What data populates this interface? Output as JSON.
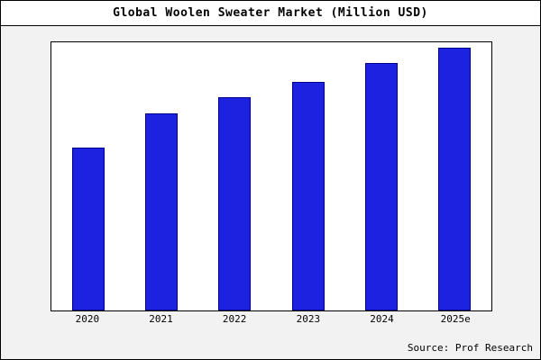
{
  "title": "Global Woolen Sweater Market (Million USD)",
  "source": "Source: Prof Research",
  "colors": {
    "bar_fill": "#1c22e0",
    "bar_border": "#00008b",
    "panel_bg": "#f2f2f2",
    "plot_bg": "#ffffff"
  },
  "chart_data": {
    "type": "bar",
    "categories": [
      "2020",
      "2021",
      "2022",
      "2023",
      "2024",
      "2025e"
    ],
    "values": [
      62,
      75,
      81,
      87,
      94,
      100
    ],
    "title": "Global Woolen Sweater Market (Million USD)",
    "xlabel": "",
    "ylabel": "",
    "ylim": [
      0,
      102
    ],
    "grid": false,
    "legend": "none",
    "note": "No y-axis tick labels shown in source image; values estimated proportional to bar heights, tallest bar (2025e) set to 100"
  }
}
